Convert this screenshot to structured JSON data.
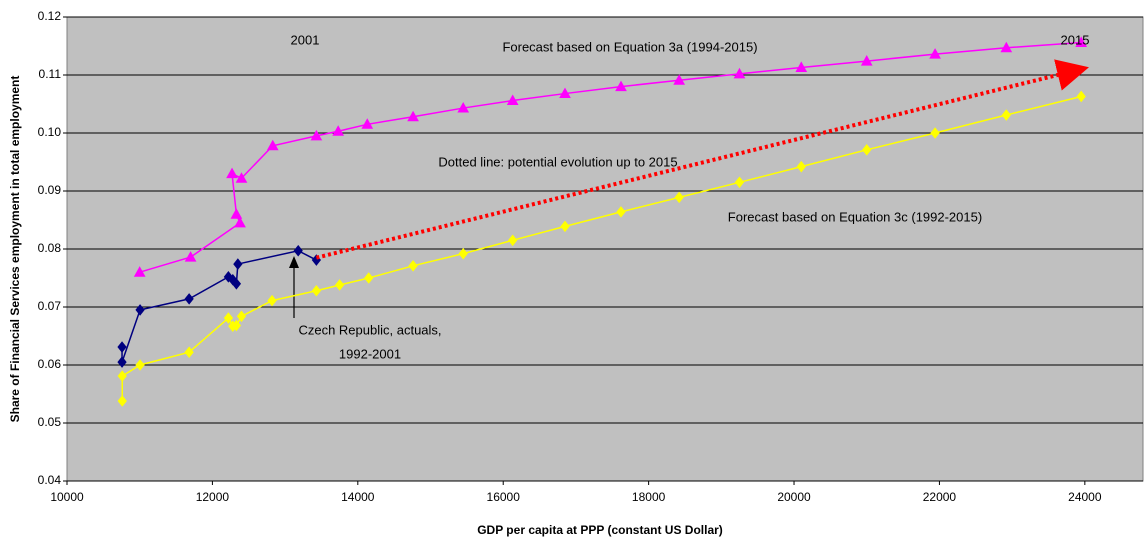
{
  "chart_data": {
    "type": "line",
    "xlabel": "GDP per capita at PPP (constant US Dollar)",
    "ylabel": "Share of Financial Services employment in total employment",
    "xlim": [
      10000,
      24800
    ],
    "xticks": [
      10000,
      12000,
      14000,
      16000,
      18000,
      20000,
      22000,
      24000
    ],
    "ylim": [
      0.04,
      0.12
    ],
    "yticks": [
      0.04,
      0.05,
      0.06,
      0.07,
      0.08,
      0.09,
      {
        "value": 0.1,
        "label": "0.10"
      },
      0.11,
      0.12
    ],
    "grid": true,
    "series": [
      {
        "color": "#ff00ff",
        "marker": "triangle",
        "x": [
          11000,
          11700,
          12380,
          12330,
          12270,
          12400,
          12830,
          13430,
          13730,
          14130,
          14760,
          15450,
          16130,
          16850,
          17620,
          18420,
          19250,
          20100,
          21000,
          21940,
          22920,
          23950
        ],
        "values": [
          0.076,
          0.0786,
          0.0845,
          0.086,
          0.093,
          0.0922,
          0.0978,
          0.0995,
          0.1003,
          0.1015,
          0.1028,
          0.1043,
          0.1056,
          0.1068,
          0.108,
          0.1091,
          0.1102,
          0.1113,
          0.1124,
          0.1136,
          0.1147,
          0.1156
        ]
      },
      {
        "color": "#ffff00",
        "marker": "diamond",
        "x": [
          10760,
          10760,
          11005,
          11680,
          12220,
          12280,
          12330,
          12400,
          12820,
          13430,
          13750,
          14150,
          14760,
          15450,
          16130,
          16850,
          17620,
          18420,
          19250,
          20100,
          21000,
          21940,
          22920,
          23950
        ],
        "values": [
          0.0538,
          0.0581,
          0.06,
          0.0622,
          0.0681,
          0.0667,
          0.0668,
          0.0684,
          0.0711,
          0.0728,
          0.0738,
          0.075,
          0.0771,
          0.0792,
          0.0815,
          0.0839,
          0.0864,
          0.0889,
          0.0915,
          0.0942,
          0.0971,
          0.1,
          0.1031,
          0.1063
        ]
      },
      {
        "color": "#000080",
        "marker": "diamond",
        "x": [
          10757,
          10757,
          11005,
          11680,
          12220,
          12280,
          12330,
          12350,
          13180,
          13430
        ],
        "values": [
          0.0631,
          0.0605,
          0.0695,
          0.0714,
          0.0752,
          0.0747,
          0.074,
          0.0774,
          0.0797,
          0.0781
        ]
      },
      {
        "color": "#ff0000",
        "dotted": true,
        "arrow": true,
        "x": [
          13430,
          23950
        ],
        "values": [
          0.0785,
          0.111
        ]
      }
    ],
    "annotations": [
      "2001",
      "2015",
      "Forecast based on Equation 3a (1994-2015)",
      "Dotted line: potential evolution up to 2015",
      "Forecast based on Equation 3c (1992-2015)",
      "Czech Republic, actuals,",
      "1992-2001"
    ]
  }
}
